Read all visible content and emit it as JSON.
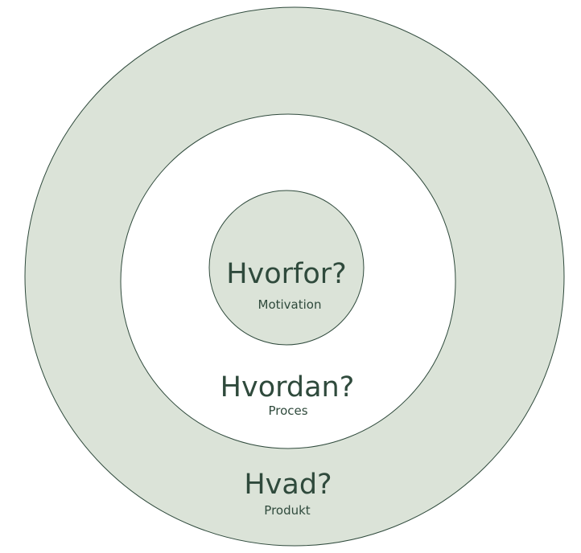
{
  "colors": {
    "ring_fill": "#dbe3d8",
    "middle_fill": "#ffffff",
    "stroke": "#2f4a3c",
    "text": "#2f4a3c"
  },
  "circles": {
    "inner": {
      "title": "Hvorfor?",
      "subtitle": "Motivation"
    },
    "middle": {
      "title": "Hvordan?",
      "subtitle": "Proces"
    },
    "outer": {
      "title": "Hvad?",
      "subtitle": "Produkt"
    }
  }
}
